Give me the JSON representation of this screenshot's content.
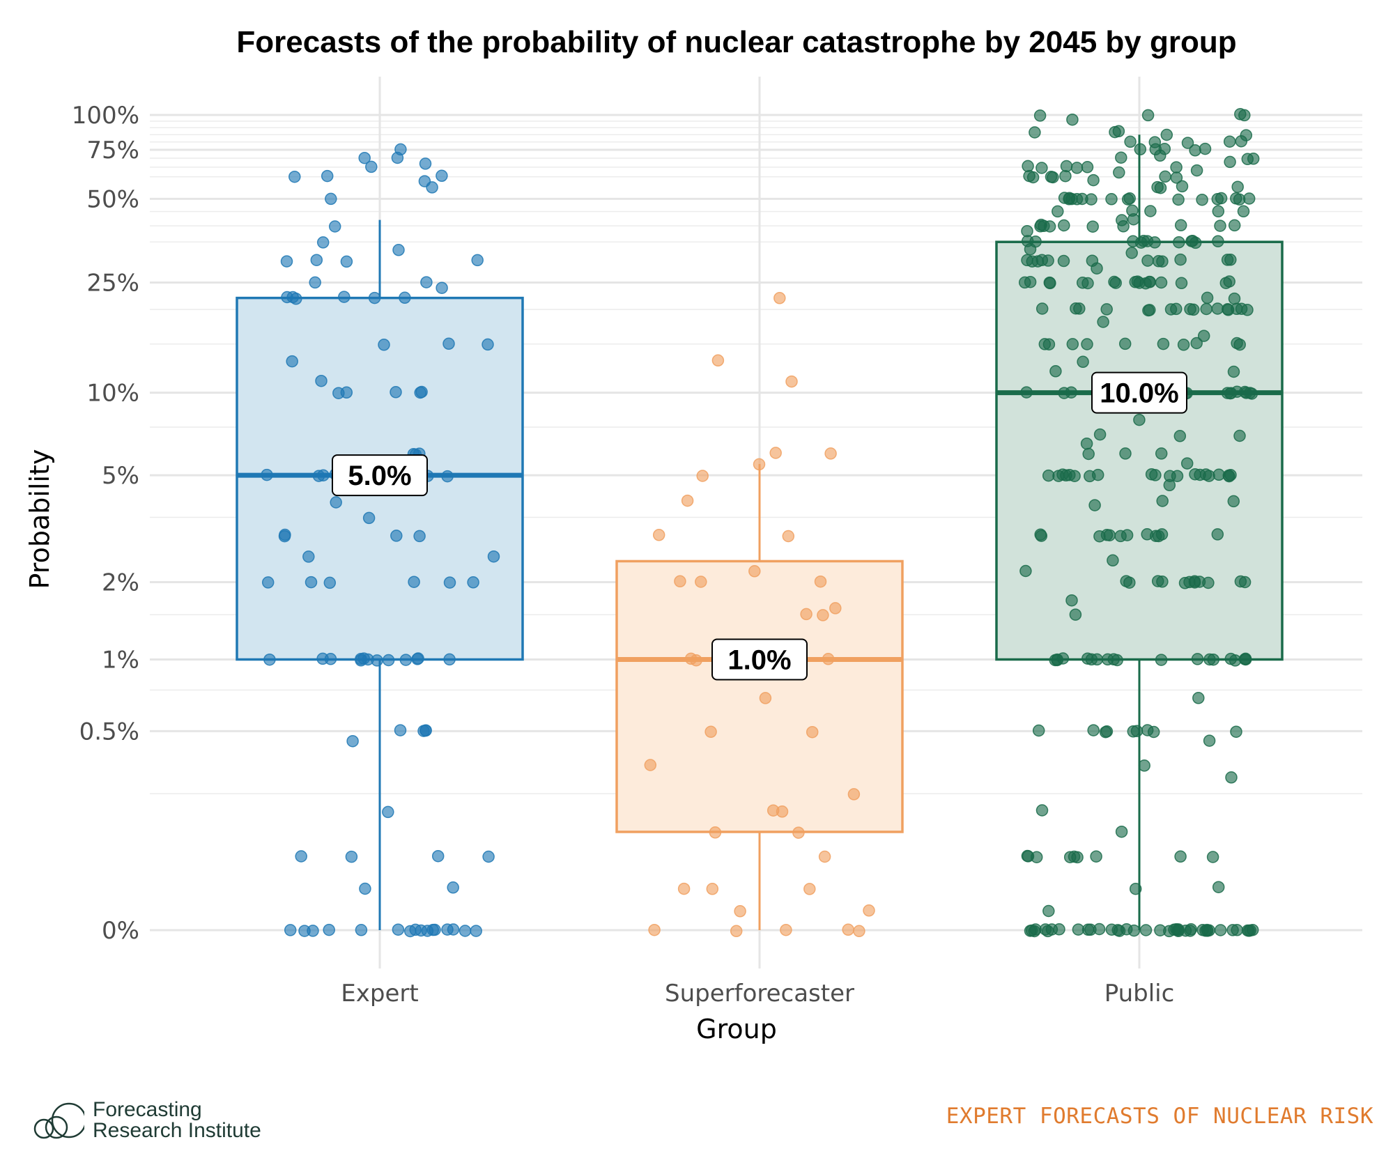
{
  "chart_data": {
    "type": "box",
    "title": "Forecasts of the probability of nuclear catastrophe by 2045 by group",
    "xlabel": "Group",
    "ylabel": "Probability",
    "y_scale": "pseudo-log",
    "y_ticks": [
      {
        "value": 0,
        "label": "0%"
      },
      {
        "value": 0.5,
        "label": "0.5%"
      },
      {
        "value": 1,
        "label": "1%"
      },
      {
        "value": 2,
        "label": "2%"
      },
      {
        "value": 5,
        "label": "5%"
      },
      {
        "value": 10,
        "label": "10%"
      },
      {
        "value": 25,
        "label": "25%"
      },
      {
        "value": 50,
        "label": "50%"
      },
      {
        "value": 75,
        "label": "75%"
      },
      {
        "value": 100,
        "label": "100%"
      }
    ],
    "grid": true,
    "groups": [
      {
        "name": "Expert",
        "color": "#1f78b4",
        "fill": "#d2e5f0",
        "box": {
          "min": 0,
          "q1": 1,
          "median": 5,
          "q3": 22,
          "max": 42
        },
        "median_label": "5.0%",
        "points": [
          0,
          0,
          0,
          0,
          0,
          0,
          0,
          0,
          0,
          0,
          0,
          0,
          0,
          0,
          0,
          0,
          0.1,
          0.1,
          0.1,
          0.1,
          0.05,
          0.05,
          0.2,
          0.5,
          0.5,
          0.5,
          0.5,
          0.45,
          1,
          1,
          1,
          1,
          1,
          1,
          1,
          1,
          1,
          1,
          1,
          1,
          1,
          2,
          2,
          2,
          2,
          2,
          2,
          2.5,
          2.5,
          3,
          3,
          3,
          3,
          3.5,
          4,
          5,
          5,
          5,
          5,
          5,
          5,
          5,
          5,
          6,
          6,
          6,
          10,
          10,
          10,
          10,
          10,
          11,
          13,
          15,
          15,
          15,
          22,
          22,
          22,
          22,
          22,
          22,
          24,
          25,
          25,
          30,
          30,
          30,
          30,
          33,
          35,
          40,
          50,
          55,
          58,
          60,
          60,
          60,
          65,
          67,
          70,
          70,
          75
        ]
      },
      {
        "name": "Superforecaster",
        "color": "#f0a060",
        "fill": "#fdebdb",
        "box": {
          "min": 0,
          "q1": 0.15,
          "median": 1,
          "q3": 2.4,
          "max": 5.5
        },
        "median_label": "1.0%",
        "points": [
          0,
          0,
          0,
          0,
          0,
          0.02,
          0.02,
          0.05,
          0.05,
          0.05,
          0.1,
          0.15,
          0.15,
          0.2,
          0.2,
          0.25,
          0.35,
          0.5,
          0.5,
          0.7,
          1,
          1,
          1,
          1,
          1.5,
          1.5,
          1.6,
          2,
          2,
          2,
          2.2,
          3,
          3,
          4,
          5,
          5.5,
          6,
          6,
          11,
          13,
          22
        ]
      },
      {
        "name": "Public",
        "color": "#1a6b4a",
        "fill": "#d1e2da",
        "box": {
          "min": 0,
          "q1": 1,
          "median": 10,
          "q3": 35,
          "max": 85
        },
        "median_label": "10.0%",
        "points": [
          0,
          0,
          0,
          0,
          0,
          0,
          0,
          0,
          0,
          0,
          0,
          0,
          0,
          0,
          0,
          0,
          0,
          0,
          0,
          0,
          0,
          0,
          0,
          0,
          0,
          0,
          0,
          0,
          0,
          0,
          0,
          0,
          0,
          0,
          0,
          0,
          0,
          0,
          0,
          0,
          0.02,
          0.05,
          0.05,
          0.1,
          0.1,
          0.1,
          0.1,
          0.1,
          0.1,
          0.1,
          0.1,
          0.1,
          0.15,
          0.2,
          0.3,
          0.35,
          0.45,
          0.5,
          0.5,
          0.5,
          0.5,
          0.5,
          0.5,
          0.5,
          0.5,
          0.5,
          0.7,
          1,
          1,
          1,
          1,
          1,
          1,
          1,
          1,
          1,
          1,
          1,
          1,
          1,
          1,
          1,
          1,
          1,
          1,
          1,
          1.5,
          1.7,
          2,
          2,
          2,
          2,
          2,
          2,
          2,
          2,
          2,
          2,
          2,
          2,
          2.2,
          2.4,
          3,
          3,
          3,
          3,
          3,
          3,
          3,
          3,
          3,
          3,
          3,
          3,
          3.9,
          4,
          4,
          4.6,
          5,
          5,
          5,
          5,
          5,
          5,
          5,
          5,
          5,
          5,
          5,
          5,
          5,
          5,
          5,
          5,
          5,
          5,
          5,
          5,
          5.5,
          6,
          6,
          6,
          6.5,
          7,
          7,
          7,
          8,
          10,
          10,
          10,
          10,
          10,
          10,
          10,
          10,
          10,
          10,
          10,
          10,
          10,
          10,
          10,
          10,
          10,
          10,
          10,
          10,
          10,
          12,
          12,
          13,
          15,
          15,
          15,
          15,
          15,
          15,
          15,
          15,
          15,
          15,
          16,
          18,
          20,
          20,
          20,
          20,
          20,
          20,
          20,
          20,
          20,
          20,
          20,
          20,
          20,
          20,
          20,
          20,
          20,
          22,
          22,
          25,
          25,
          25,
          25,
          25,
          25,
          25,
          25,
          25,
          25,
          25,
          25,
          25,
          25,
          25,
          25,
          25,
          25,
          28,
          30,
          30,
          30,
          30,
          30,
          30,
          30,
          30,
          30,
          30,
          30,
          30,
          30,
          32,
          33,
          35,
          35,
          35,
          35,
          35,
          35,
          35,
          35,
          35,
          35,
          35,
          35,
          38,
          40,
          40,
          40,
          40,
          40,
          40,
          40,
          40,
          40,
          40,
          42,
          42,
          45,
          45,
          45,
          45,
          45,
          50,
          50,
          50,
          50,
          50,
          50,
          50,
          50,
          50,
          50,
          50,
          50,
          50,
          50,
          50,
          50,
          50,
          55,
          55,
          55,
          55,
          58,
          60,
          60,
          60,
          60,
          60,
          60,
          60,
          62,
          63,
          65,
          65,
          65,
          65,
          65,
          65,
          68,
          70,
          70,
          70,
          72,
          75,
          75,
          75,
          75,
          75,
          80,
          80,
          80,
          80,
          80,
          85,
          85,
          87,
          87,
          87,
          97,
          100,
          100,
          100,
          100
        ]
      }
    ]
  },
  "footer": {
    "org_line1": "Forecasting",
    "org_line2": "Research Institute",
    "tagline": "EXPERT FORECASTS OF NUCLEAR RISK",
    "logo_icon": "overlapping-circles-logo-icon"
  }
}
